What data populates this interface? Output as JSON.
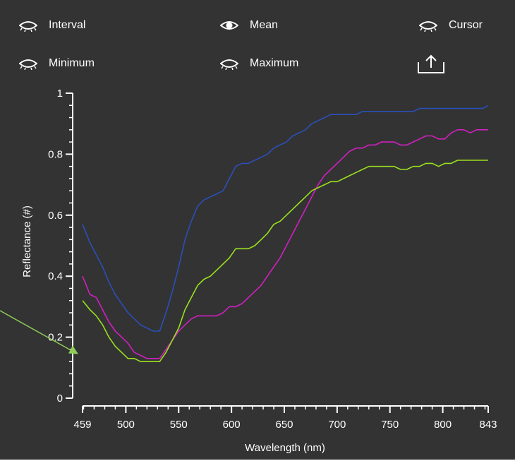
{
  "toggles": [
    {
      "label": "Interval",
      "icon": "eye-closed-icon",
      "state": "off"
    },
    {
      "label": "Mean",
      "icon": "eye-open-icon",
      "state": "on"
    },
    {
      "label": "Cursor",
      "icon": "eye-closed-icon",
      "state": "off"
    },
    {
      "label": "Minimum",
      "icon": "eye-closed-icon",
      "state": "off"
    },
    {
      "label": "Maximum",
      "icon": "eye-closed-icon",
      "state": "off"
    }
  ],
  "export": {
    "icon": "share-upload-icon"
  },
  "colors": {
    "background": "#333333",
    "axis": "#ffffff",
    "blue": "#2b4fb8",
    "magenta": "#d020c0",
    "green": "#99e020",
    "annotation": "#8fcc5a"
  },
  "chart_data": {
    "type": "line",
    "xlabel": "Wavelength (nm)",
    "ylabel": "Reflectance (#)",
    "xlim": [
      459,
      843
    ],
    "ylim": [
      0,
      1
    ],
    "x_ticks": [
      459,
      500,
      550,
      600,
      650,
      700,
      750,
      800,
      843
    ],
    "y_ticks": [
      0,
      0.2,
      0.4,
      0.6,
      0.8,
      1
    ],
    "y_tick_labels": [
      "0",
      "0.2",
      "0.4",
      "0.6",
      "0.8",
      "1"
    ],
    "grid": false,
    "x": [
      459,
      466,
      472,
      478,
      484,
      490,
      496,
      502,
      508,
      514,
      520,
      526,
      532,
      538,
      544,
      550,
      556,
      562,
      568,
      574,
      580,
      586,
      592,
      598,
      604,
      610,
      616,
      622,
      628,
      634,
      640,
      646,
      652,
      658,
      664,
      670,
      676,
      682,
      688,
      694,
      700,
      706,
      712,
      718,
      724,
      730,
      736,
      742,
      748,
      754,
      760,
      766,
      772,
      778,
      784,
      790,
      796,
      802,
      808,
      814,
      820,
      826,
      832,
      838,
      843
    ],
    "series": [
      {
        "color": "#2b4fb8",
        "values": [
          0.57,
          0.51,
          0.47,
          0.43,
          0.38,
          0.34,
          0.31,
          0.28,
          0.26,
          0.24,
          0.23,
          0.22,
          0.22,
          0.28,
          0.35,
          0.43,
          0.52,
          0.58,
          0.63,
          0.65,
          0.66,
          0.67,
          0.68,
          0.72,
          0.76,
          0.77,
          0.77,
          0.78,
          0.79,
          0.8,
          0.82,
          0.83,
          0.84,
          0.86,
          0.87,
          0.88,
          0.9,
          0.91,
          0.92,
          0.93,
          0.93,
          0.93,
          0.93,
          0.93,
          0.94,
          0.94,
          0.94,
          0.94,
          0.94,
          0.94,
          0.94,
          0.94,
          0.94,
          0.95,
          0.95,
          0.95,
          0.95,
          0.95,
          0.95,
          0.95,
          0.95,
          0.95,
          0.95,
          0.95,
          0.96
        ]
      },
      {
        "color": "#d020c0",
        "values": [
          0.4,
          0.34,
          0.33,
          0.29,
          0.25,
          0.22,
          0.2,
          0.18,
          0.15,
          0.14,
          0.13,
          0.13,
          0.13,
          0.16,
          0.19,
          0.22,
          0.24,
          0.26,
          0.27,
          0.27,
          0.27,
          0.27,
          0.28,
          0.3,
          0.3,
          0.31,
          0.33,
          0.35,
          0.37,
          0.4,
          0.43,
          0.46,
          0.5,
          0.54,
          0.58,
          0.62,
          0.66,
          0.7,
          0.73,
          0.75,
          0.77,
          0.79,
          0.81,
          0.82,
          0.82,
          0.83,
          0.83,
          0.84,
          0.84,
          0.84,
          0.83,
          0.83,
          0.84,
          0.85,
          0.86,
          0.86,
          0.85,
          0.85,
          0.87,
          0.88,
          0.88,
          0.87,
          0.88,
          0.88,
          0.88
        ]
      },
      {
        "color": "#99e020",
        "values": [
          0.32,
          0.29,
          0.27,
          0.24,
          0.2,
          0.17,
          0.15,
          0.13,
          0.13,
          0.12,
          0.12,
          0.12,
          0.12,
          0.15,
          0.19,
          0.23,
          0.29,
          0.33,
          0.37,
          0.39,
          0.4,
          0.42,
          0.44,
          0.46,
          0.49,
          0.49,
          0.49,
          0.5,
          0.52,
          0.54,
          0.57,
          0.58,
          0.6,
          0.62,
          0.64,
          0.66,
          0.68,
          0.69,
          0.7,
          0.71,
          0.71,
          0.72,
          0.73,
          0.74,
          0.75,
          0.76,
          0.76,
          0.76,
          0.76,
          0.76,
          0.75,
          0.75,
          0.76,
          0.76,
          0.77,
          0.77,
          0.76,
          0.77,
          0.77,
          0.78,
          0.78,
          0.78,
          0.78,
          0.78,
          0.78
        ]
      }
    ],
    "annotation_arrow": {
      "points_to": [
        459,
        0.14
      ]
    }
  }
}
